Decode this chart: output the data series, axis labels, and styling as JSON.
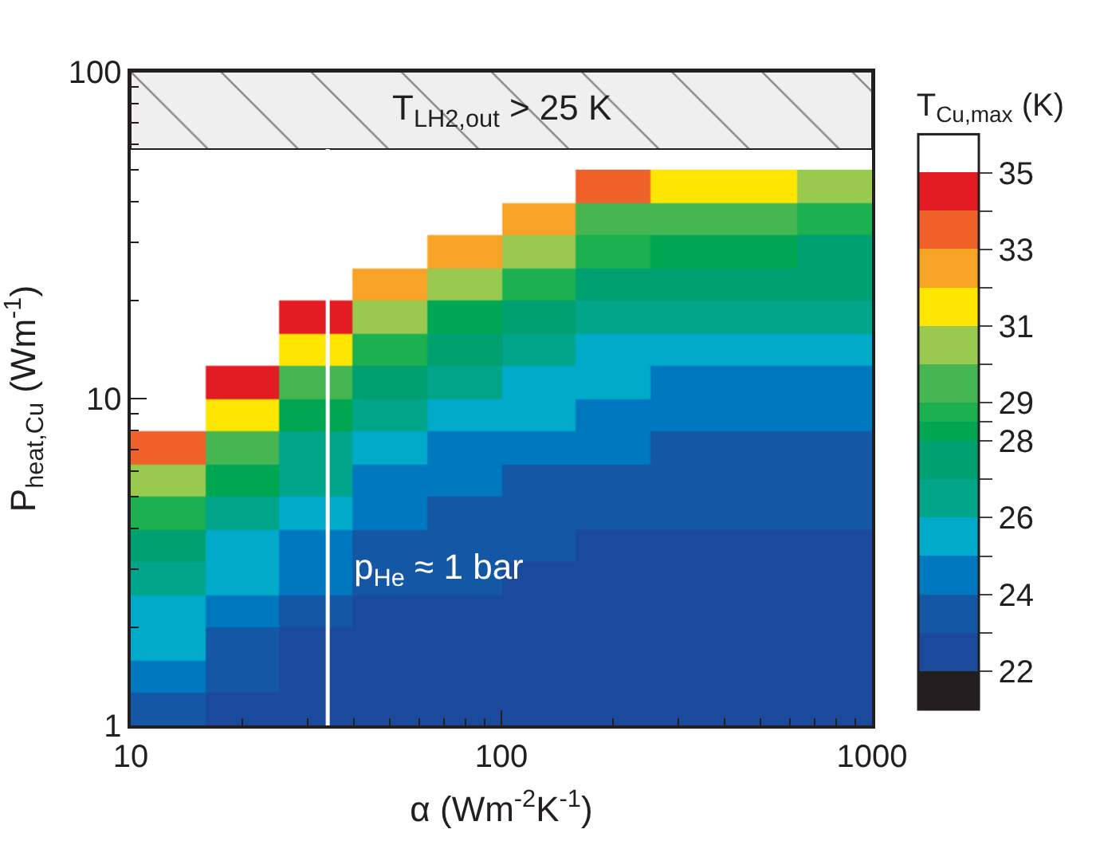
{
  "chart_data": {
    "type": "heatmap",
    "xlabel": "α (Wm$^{-2}$K$^{-1}$)",
    "ylabel": "P$_{heat,Cu}$ (Wm$^{-1}$)",
    "clabel": "T$_{Cu,max}$ (K)",
    "x": [
      12.6,
      20,
      31.6,
      50.1,
      79.4,
      126,
      200,
      316,
      501,
      794
    ],
    "y": [
      44.7,
      35.5,
      28.2,
      22.4,
      17.8,
      14.1,
      11.2,
      8.91,
      7.08,
      5.62,
      4.47,
      3.55,
      2.82,
      2.24,
      1.78,
      1.41,
      1.12
    ],
    "cells": [
      [
        null,
        null,
        null,
        null,
        null,
        null,
        33.5,
        31.5,
        31.5,
        30.5
      ],
      [
        null,
        null,
        null,
        null,
        null,
        32.5,
        29.5,
        29.5,
        29.5,
        28.75
      ],
      [
        null,
        null,
        null,
        null,
        32.5,
        30.5,
        28.75,
        28.25,
        28.25,
        27.5
      ],
      [
        null,
        null,
        null,
        32.5,
        30.5,
        28.75,
        27.5,
        27.5,
        27.5,
        27.5
      ],
      [
        null,
        null,
        34.5,
        30.5,
        28.25,
        27.5,
        26.5,
        26.5,
        26.5,
        26.5
      ],
      [
        null,
        null,
        31.5,
        28.75,
        27.5,
        26.5,
        25.5,
        25.5,
        25.5,
        25.5
      ],
      [
        null,
        34.5,
        29.5,
        27.5,
        26.5,
        25.5,
        25.5,
        24.5,
        24.5,
        24.5
      ],
      [
        null,
        31.5,
        28.25,
        26.5,
        25.5,
        25.5,
        24.5,
        24.5,
        24.5,
        24.5
      ],
      [
        33.5,
        29.5,
        26.5,
        25.5,
        24.5,
        24.5,
        24.5,
        23.5,
        23.5,
        23.5
      ],
      [
        30.5,
        28.25,
        26.5,
        24.5,
        24.5,
        23.5,
        23.5,
        23.5,
        23.5,
        23.5
      ],
      [
        28.75,
        26.5,
        25.5,
        24.5,
        23.5,
        23.5,
        23.5,
        23.5,
        23.5,
        23.5
      ],
      [
        27.5,
        25.5,
        24.5,
        23.5,
        23.5,
        23.5,
        22.5,
        22.5,
        22.5,
        22.5
      ],
      [
        26.5,
        25.5,
        24.5,
        23.5,
        23.5,
        22.5,
        22.5,
        22.5,
        22.5,
        22.5
      ],
      [
        25.5,
        24.5,
        23.5,
        22.5,
        22.5,
        22.5,
        22.5,
        22.5,
        22.5,
        22.5
      ],
      [
        25.5,
        23.5,
        22.5,
        22.5,
        22.5,
        22.5,
        22.5,
        22.5,
        22.5,
        22.5
      ],
      [
        24.5,
        23.5,
        22.5,
        22.5,
        22.5,
        22.5,
        22.5,
        22.5,
        22.5,
        22.5
      ],
      [
        23.5,
        22.5,
        22.5,
        22.5,
        22.5,
        22.5,
        22.5,
        22.5,
        22.5,
        22.5
      ]
    ],
    "clim": [
      21,
      36
    ],
    "colors": [
      "#231f20",
      "#1b4a9c",
      "#1457a5",
      "#0078c0",
      "#00aac8",
      "#00a58a",
      "#00a070",
      "#00a651",
      "#1cb050",
      "#46b653",
      "#99c94f",
      "#ffe600",
      "#f7a325",
      "#f06129",
      "#e31b23",
      "#ffffff"
    ],
    "cticks": [
      22,
      {
        "value": 23,
        "label": null
      },
      24,
      {
        "value": 25,
        "label": null
      },
      26,
      {
        "value": 27,
        "label": null
      },
      28,
      {
        "value": 28.5,
        "label": null
      },
      29,
      {
        "value": 30,
        "label": null
      },
      31,
      {
        "value": 32,
        "label": null
      },
      33,
      {
        "value": 34,
        "label": null
      },
      35
    ],
    "log": "xy",
    "xlim": [
      10,
      1000
    ],
    "xticks": [
      10,
      100,
      1000
    ],
    "ylim": [
      1,
      100
    ],
    "yticks": [
      1,
      10,
      100
    ],
    "bands": [
      {
        "axis": "y",
        "from": 58,
        "to": 100,
        "label": "T$_{LH2,out}$ > 25 K",
        "color": "#eeefee"
      }
    ],
    "ref_lines": [
      {
        "axis": "x",
        "value": 34,
        "color": "#ffffff"
      }
    ],
    "annotations": [
      {
        "text": "p$_{He}$ ≈ 1 bar",
        "x": 34,
        "y": 3
      }
    ]
  }
}
